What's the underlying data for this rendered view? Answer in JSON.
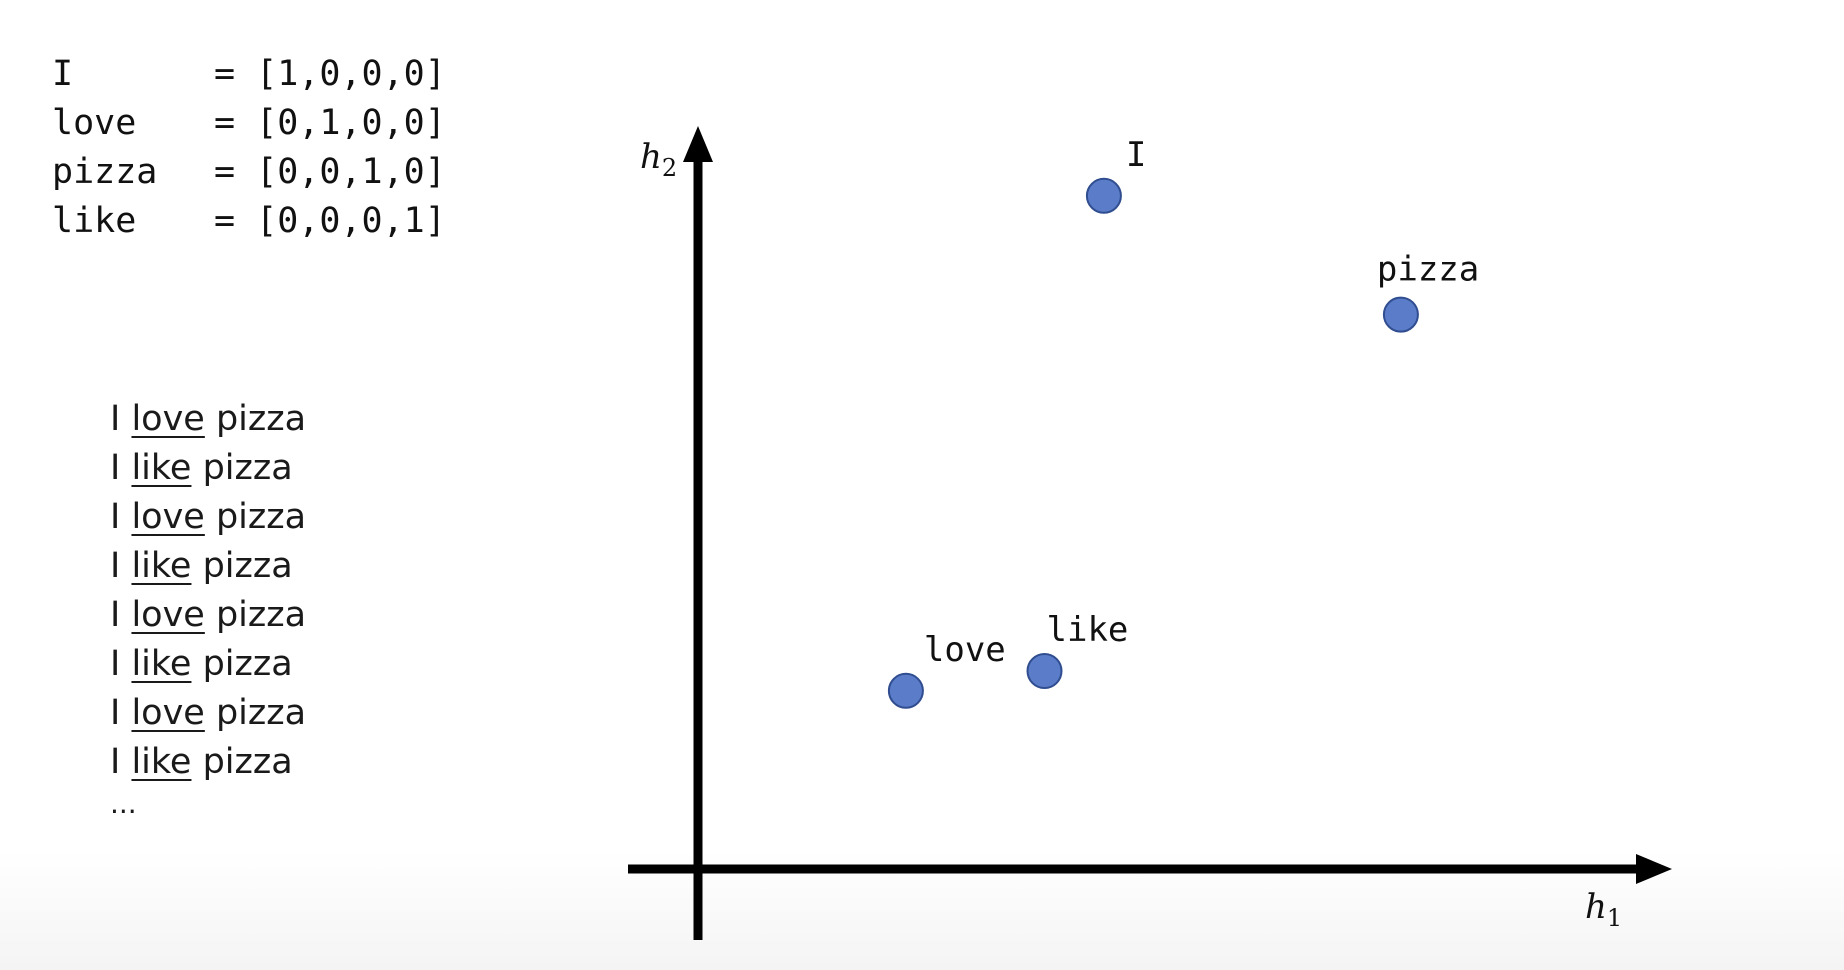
{
  "one_hot": [
    {
      "word": "I",
      "vector": "= [1,0,0,0]"
    },
    {
      "word": "love",
      "vector": "= [0,1,0,0]"
    },
    {
      "word": "pizza",
      "vector": "= [0,0,1,0]"
    },
    {
      "word": "like",
      "vector": "= [0,0,0,1]"
    }
  ],
  "sentences": [
    {
      "start": "I ",
      "target": "love",
      "end": " pizza"
    },
    {
      "start": "I ",
      "target": "like",
      "end": " pizza"
    },
    {
      "start": "I ",
      "target": "love",
      "end": " pizza"
    },
    {
      "start": "I ",
      "target": "like",
      "end": " pizza"
    },
    {
      "start": "I ",
      "target": "love",
      "end": " pizza"
    },
    {
      "start": "I ",
      "target": "like",
      "end": " pizza"
    },
    {
      "start": "I ",
      "target": "love",
      "end": " pizza"
    },
    {
      "start": "I ",
      "target": "like",
      "end": " pizza"
    }
  ],
  "ellipsis": "...",
  "chart_data": {
    "type": "scatter",
    "xlabel": "h",
    "xlabel_sub": "1",
    "ylabel": "h",
    "ylabel_sub": "2",
    "points": [
      {
        "label": "I",
        "x": 4.1,
        "y": 6.8
      },
      {
        "label": "pizza",
        "x": 7.1,
        "y": 5.6
      },
      {
        "label": "love",
        "x": 2.1,
        "y": 1.8
      },
      {
        "label": "like",
        "x": 3.5,
        "y": 2.0
      }
    ],
    "colors": {
      "point_fill": "#5b7cc9",
      "point_stroke": "#2f4d8f",
      "axis": "#000000"
    }
  }
}
